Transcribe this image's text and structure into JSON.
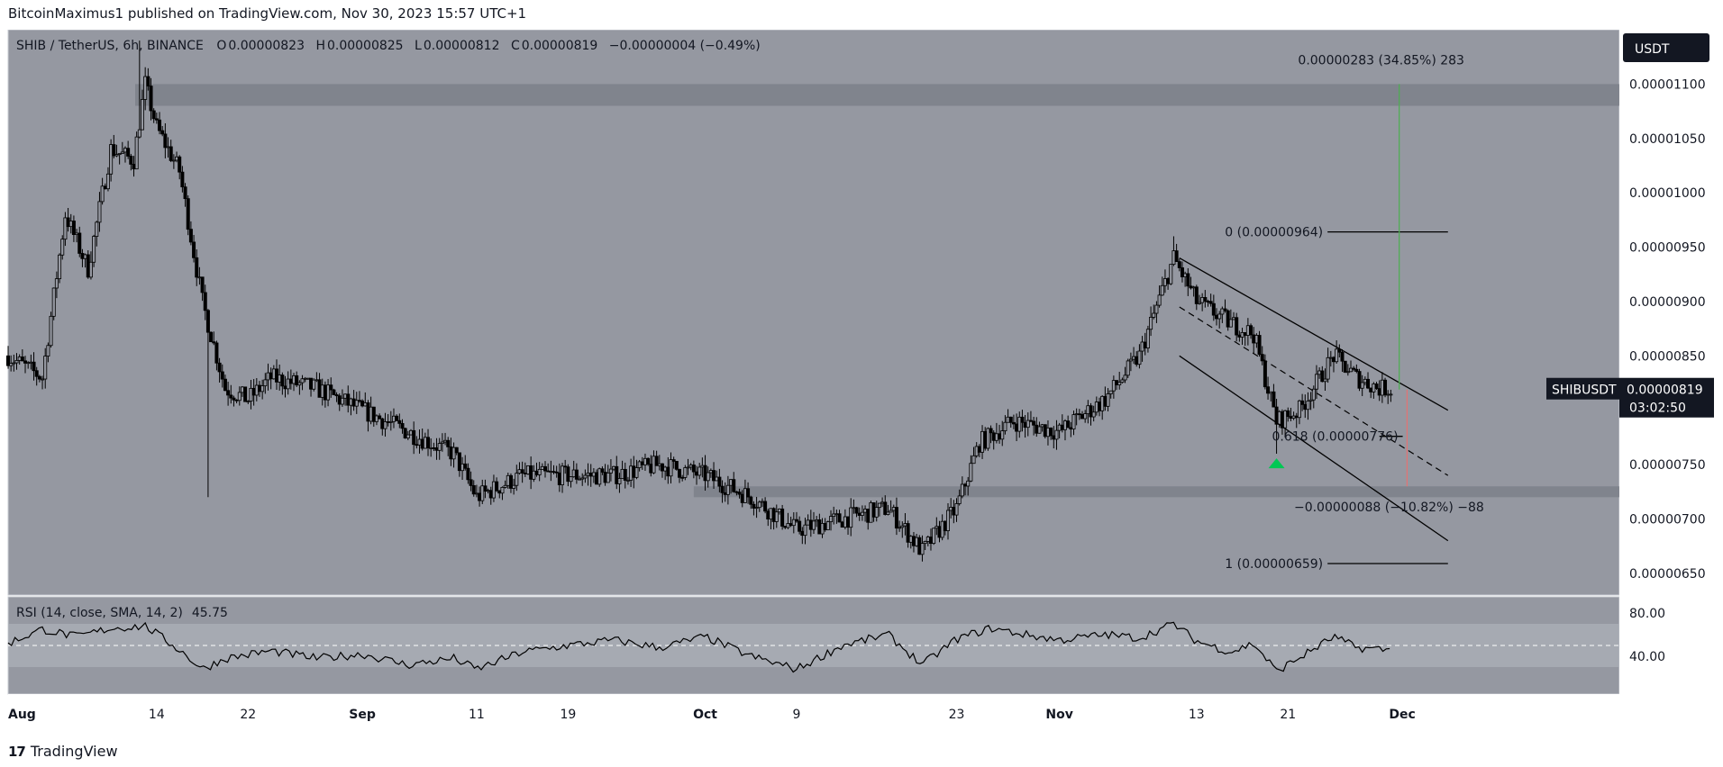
{
  "header": {
    "publisher_line": "BitcoinMaximus1 published on TradingView.com, Nov 30, 2023 15:57 UTC+1"
  },
  "footer": {
    "logo_mark": "17",
    "brand": "TradingView"
  },
  "colors": {
    "plot_bg": "#9598a1",
    "candle": "#000000",
    "zone": "#7d8089",
    "green_line": "#4caf50",
    "red_line": "#e57373",
    "marker": "#00c853",
    "label_bg": "#131722",
    "rsi_band": "#b2b5be"
  },
  "chart_data": [
    {
      "type": "candlestick",
      "symbol": "SHIB / TetherUS, 6h, BINANCE",
      "ohlc_labels": {
        "o": "O",
        "h": "H",
        "l": "L",
        "c": "C"
      },
      "ohlc_values": {
        "o": "0.00000823",
        "h": "0.00000825",
        "l": "0.00000812",
        "c": "0.00000819",
        "change": "−0.00000004 (−0.49%)"
      },
      "currency": "USDT",
      "y_range": [
        6.3e-06,
        1.15e-05
      ],
      "x_range_days": [
        0,
        141
      ],
      "y_ticks": [
        {
          "value": 1.1e-05,
          "label": "0.00001100"
        },
        {
          "value": 1.05e-05,
          "label": "0.00001050"
        },
        {
          "value": 1e-05,
          "label": "0.00001000"
        },
        {
          "value": 9.5e-06,
          "label": "0.00000950"
        },
        {
          "value": 9e-06,
          "label": "0.00000900"
        },
        {
          "value": 8.5e-06,
          "label": "0.00000850"
        },
        {
          "value": 7.5e-06,
          "label": "0.00000750"
        },
        {
          "value": 7e-06,
          "label": "0.00000700"
        },
        {
          "value": 6.5e-06,
          "label": "0.00000650"
        }
      ],
      "x_ticks": [
        {
          "day": 0,
          "label": "Aug"
        },
        {
          "day": 13,
          "label": "14"
        },
        {
          "day": 21,
          "label": "22"
        },
        {
          "day": 31,
          "label": "Sep"
        },
        {
          "day": 41,
          "label": "11"
        },
        {
          "day": 49,
          "label": "19"
        },
        {
          "day": 61,
          "label": "Oct"
        },
        {
          "day": 69,
          "label": "9"
        },
        {
          "day": 83,
          "label": "23"
        },
        {
          "day": 92,
          "label": "Nov"
        },
        {
          "day": 104,
          "label": "13"
        },
        {
          "day": 112,
          "label": "21"
        },
        {
          "day": 122,
          "label": "Dec"
        }
      ],
      "price_path": [
        {
          "day": 0,
          "price": 8.5e-06
        },
        {
          "day": 3,
          "price": 8.3e-06
        },
        {
          "day": 5,
          "price": 9.8e-06
        },
        {
          "day": 7,
          "price": 9.3e-06
        },
        {
          "day": 9,
          "price": 1.04e-05
        },
        {
          "day": 11,
          "price": 1.03e-05
        },
        {
          "day": 12,
          "price": 1.1e-05
        },
        {
          "day": 13,
          "price": 1.06e-05
        },
        {
          "day": 15,
          "price": 1.02e-05
        },
        {
          "day": 17,
          "price": 9e-06
        },
        {
          "day": 19,
          "price": 8.2e-06
        },
        {
          "day": 21,
          "price": 8.1e-06
        },
        {
          "day": 23,
          "price": 8.3e-06
        },
        {
          "day": 27,
          "price": 8.2e-06
        },
        {
          "day": 31,
          "price": 8e-06
        },
        {
          "day": 35,
          "price": 7.8e-06
        },
        {
          "day": 39,
          "price": 7.6e-06
        },
        {
          "day": 41,
          "price": 7.2e-06
        },
        {
          "day": 45,
          "price": 7.4e-06
        },
        {
          "day": 53,
          "price": 7.4e-06
        },
        {
          "day": 57,
          "price": 7.5e-06
        },
        {
          "day": 61,
          "price": 7.4e-06
        },
        {
          "day": 65,
          "price": 7.2e-06
        },
        {
          "day": 69,
          "price": 6.9e-06
        },
        {
          "day": 73,
          "price": 7e-06
        },
        {
          "day": 77,
          "price": 7.1e-06
        },
        {
          "day": 80,
          "price": 6.7e-06
        },
        {
          "day": 83,
          "price": 7.1e-06
        },
        {
          "day": 85,
          "price": 7.7e-06
        },
        {
          "day": 88,
          "price": 7.9e-06
        },
        {
          "day": 92,
          "price": 7.8e-06
        },
        {
          "day": 96,
          "price": 8.1e-06
        },
        {
          "day": 99,
          "price": 8.5e-06
        },
        {
          "day": 102,
          "price": 9.4e-06
        },
        {
          "day": 104,
          "price": 9e-06
        },
        {
          "day": 107,
          "price": 8.8e-06
        },
        {
          "day": 109,
          "price": 8.7e-06
        },
        {
          "day": 111,
          "price": 7.9e-06
        },
        {
          "day": 113,
          "price": 8e-06
        },
        {
          "day": 116,
          "price": 8.5e-06
        },
        {
          "day": 118,
          "price": 8.3e-06
        },
        {
          "day": 120,
          "price": 8.2e-06
        },
        {
          "day": 121,
          "price": 8.2e-06
        }
      ],
      "spikes": [
        {
          "day": 11.5,
          "high": 1.14e-05
        },
        {
          "day": 17.5,
          "low": 7.2e-06
        },
        {
          "day": 102,
          "high": 9.6e-06
        },
        {
          "day": 111,
          "low": 7.6e-06
        }
      ],
      "horizontal_zones": [
        {
          "name": "resistance",
          "from": 1.08e-05,
          "to": 1.1e-05
        },
        {
          "name": "support",
          "from": 7.2e-06,
          "to": 7.3e-06
        }
      ],
      "channel": {
        "upper": [
          {
            "day": 102.5,
            "price": 9.4e-06
          },
          {
            "day": 126,
            "price": 8e-06
          }
        ],
        "lower": [
          {
            "day": 102.5,
            "price": 8.5e-06
          },
          {
            "day": 126,
            "price": 6.8e-06
          }
        ],
        "mid": [
          {
            "day": 102.5,
            "price": 8.95e-06
          },
          {
            "day": 126,
            "price": 7.4e-06
          }
        ]
      },
      "fib_levels": [
        {
          "label": "0 (0.00000964)",
          "price": 9.64e-06,
          "from_day": 106,
          "to_day": 126
        },
        {
          "label": "0.618 (0.00000776)",
          "price": 7.76e-06,
          "from_day": 111,
          "to_day": 120
        },
        {
          "label": "1 (0.00000659)",
          "price": 6.59e-06,
          "from_day": 106,
          "to_day": 126
        }
      ],
      "measure_up": {
        "label": "0.00000283 (34.85%) 283",
        "day": 120,
        "from": 8.19e-06,
        "to": 1.1e-05
      },
      "measure_down": {
        "label": "−0.00000088 (−10.82%) −88",
        "day": 121,
        "from": 8.19e-06,
        "to": 7.3e-06
      },
      "price_tag": {
        "symbol": "SHIBUSDT",
        "price": "0.00000819",
        "countdown": "03:02:50",
        "value": 8.19e-06
      },
      "marker": {
        "day": 111,
        "price": 7.5e-06
      }
    },
    {
      "type": "line",
      "indicator": "RSI",
      "label": "RSI (14, close, SMA, 14, 2)",
      "value_label": "45.75",
      "y_range": [
        5,
        95
      ],
      "band": [
        30,
        70
      ],
      "midline": 50,
      "y_ticks": [
        {
          "value": 80,
          "label": "80.00"
        },
        {
          "value": 40,
          "label": "40.00"
        }
      ],
      "path": [
        {
          "day": 0,
          "rsi": 52
        },
        {
          "day": 3,
          "rsi": 65
        },
        {
          "day": 6,
          "rsi": 58
        },
        {
          "day": 9,
          "rsi": 66
        },
        {
          "day": 12,
          "rsi": 68
        },
        {
          "day": 15,
          "rsi": 46
        },
        {
          "day": 17,
          "rsi": 28
        },
        {
          "day": 19,
          "rsi": 38
        },
        {
          "day": 23,
          "rsi": 45
        },
        {
          "day": 27,
          "rsi": 38
        },
        {
          "day": 31,
          "rsi": 42
        },
        {
          "day": 35,
          "rsi": 32
        },
        {
          "day": 39,
          "rsi": 38
        },
        {
          "day": 41,
          "rsi": 28
        },
        {
          "day": 45,
          "rsi": 44
        },
        {
          "day": 49,
          "rsi": 50
        },
        {
          "day": 53,
          "rsi": 55
        },
        {
          "day": 57,
          "rsi": 48
        },
        {
          "day": 61,
          "rsi": 58
        },
        {
          "day": 65,
          "rsi": 40
        },
        {
          "day": 69,
          "rsi": 28
        },
        {
          "day": 73,
          "rsi": 50
        },
        {
          "day": 77,
          "rsi": 60
        },
        {
          "day": 80,
          "rsi": 32
        },
        {
          "day": 83,
          "rsi": 56
        },
        {
          "day": 86,
          "rsi": 66
        },
        {
          "day": 89,
          "rsi": 60
        },
        {
          "day": 92,
          "rsi": 55
        },
        {
          "day": 96,
          "rsi": 60
        },
        {
          "day": 99,
          "rsi": 57
        },
        {
          "day": 102,
          "rsi": 70
        },
        {
          "day": 104,
          "rsi": 54
        },
        {
          "day": 107,
          "rsi": 44
        },
        {
          "day": 109,
          "rsi": 52
        },
        {
          "day": 111,
          "rsi": 26
        },
        {
          "day": 114,
          "rsi": 45
        },
        {
          "day": 116,
          "rsi": 58
        },
        {
          "day": 118,
          "rsi": 48
        },
        {
          "day": 121,
          "rsi": 45.75
        }
      ]
    }
  ]
}
